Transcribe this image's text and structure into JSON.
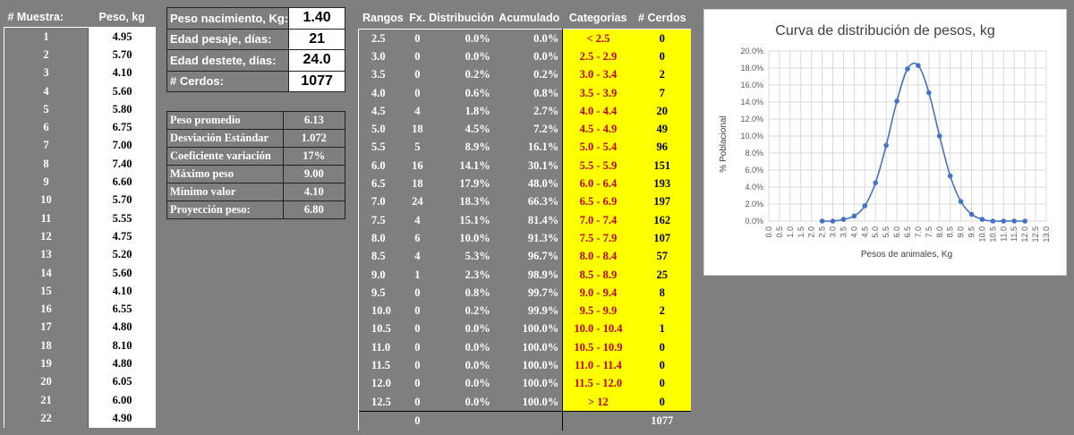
{
  "muestras": {
    "header_num": "# Muestra:",
    "header_peso": "Peso, kg",
    "rows": [
      {
        "n": "1",
        "p": "4.95"
      },
      {
        "n": "2",
        "p": "5.70"
      },
      {
        "n": "3",
        "p": "4.10"
      },
      {
        "n": "4",
        "p": "5.60"
      },
      {
        "n": "5",
        "p": "5.80"
      },
      {
        "n": "6",
        "p": "6.75"
      },
      {
        "n": "7",
        "p": "7.00"
      },
      {
        "n": "8",
        "p": "7.40"
      },
      {
        "n": "9",
        "p": "6.60"
      },
      {
        "n": "10",
        "p": "5.70"
      },
      {
        "n": "11",
        "p": "5.55"
      },
      {
        "n": "12",
        "p": "4.75"
      },
      {
        "n": "13",
        "p": "5.20"
      },
      {
        "n": "14",
        "p": "5.60"
      },
      {
        "n": "15",
        "p": "4.10"
      },
      {
        "n": "16",
        "p": "6.55"
      },
      {
        "n": "17",
        "p": "4.80"
      },
      {
        "n": "18",
        "p": "8.10"
      },
      {
        "n": "19",
        "p": "4.80"
      },
      {
        "n": "20",
        "p": "6.05"
      },
      {
        "n": "21",
        "p": "6.00"
      },
      {
        "n": "22",
        "p": "4.90"
      }
    ]
  },
  "params": [
    {
      "label": "Peso nacimiento, Kg:",
      "value": "1.40"
    },
    {
      "label": "Edad pesaje, días:",
      "value": "21"
    },
    {
      "label": "Edad destete, días:",
      "value": "24.0"
    },
    {
      "label": "# Cerdos:",
      "value": "1077"
    }
  ],
  "stats": [
    {
      "label": "Peso promedio",
      "value": "6.13"
    },
    {
      "label": "Desviación Estándar",
      "value": "1.072"
    },
    {
      "label": "Coeficiente variación",
      "value": "17%"
    },
    {
      "label": "Máximo peso",
      "value": "9.00"
    },
    {
      "label": "Mínimo valor",
      "value": "4.10"
    },
    {
      "label": "Proyección peso:",
      "value": "6.80"
    }
  ],
  "dist": {
    "headers": [
      "Rangos",
      "Fx.",
      "Distribución",
      "Acumulado",
      "Categorias",
      "# Cerdos"
    ],
    "rows": [
      {
        "r": "2.5",
        "fx": "0",
        "d": "0.0%",
        "a": "0.0%",
        "c": "< 2.5",
        "n": "0"
      },
      {
        "r": "3.0",
        "fx": "0",
        "d": "0.0%",
        "a": "0.0%",
        "c": "2.5 - 2.9",
        "n": "0"
      },
      {
        "r": "3.5",
        "fx": "0",
        "d": "0.2%",
        "a": "0.2%",
        "c": "3.0 - 3.4",
        "n": "2"
      },
      {
        "r": "4.0",
        "fx": "0",
        "d": "0.6%",
        "a": "0.8%",
        "c": "3.5 - 3.9",
        "n": "7"
      },
      {
        "r": "4.5",
        "fx": "4",
        "d": "1.8%",
        "a": "2.7%",
        "c": "4.0 - 4.4",
        "n": "20"
      },
      {
        "r": "5.0",
        "fx": "18",
        "d": "4.5%",
        "a": "7.2%",
        "c": "4.5 - 4.9",
        "n": "49"
      },
      {
        "r": "5.5",
        "fx": "5",
        "d": "8.9%",
        "a": "16.1%",
        "c": "5.0 - 5.4",
        "n": "96"
      },
      {
        "r": "6.0",
        "fx": "16",
        "d": "14.1%",
        "a": "30.1%",
        "c": "5.5 - 5.9",
        "n": "151"
      },
      {
        "r": "6.5",
        "fx": "18",
        "d": "17.9%",
        "a": "48.0%",
        "c": "6.0 - 6.4",
        "n": "193"
      },
      {
        "r": "7.0",
        "fx": "24",
        "d": "18.3%",
        "a": "66.3%",
        "c": "6.5 - 6.9",
        "n": "197"
      },
      {
        "r": "7.5",
        "fx": "4",
        "d": "15.1%",
        "a": "81.4%",
        "c": "7.0 - 7.4",
        "n": "162"
      },
      {
        "r": "8.0",
        "fx": "6",
        "d": "10.0%",
        "a": "91.3%",
        "c": "7.5 - 7.9",
        "n": "107"
      },
      {
        "r": "8.5",
        "fx": "4",
        "d": "5.3%",
        "a": "96.7%",
        "c": "8.0 - 8.4",
        "n": "57"
      },
      {
        "r": "9.0",
        "fx": "1",
        "d": "2.3%",
        "a": "98.9%",
        "c": "8.5 - 8.9",
        "n": "25"
      },
      {
        "r": "9.5",
        "fx": "0",
        "d": "0.8%",
        "a": "99.7%",
        "c": "9.0 - 9.4",
        "n": "8"
      },
      {
        "r": "10.0",
        "fx": "0",
        "d": "0.2%",
        "a": "99.9%",
        "c": "9.5 - 9.9",
        "n": "2"
      },
      {
        "r": "10.5",
        "fx": "0",
        "d": "0.0%",
        "a": "100.0%",
        "c": "10.0 - 10.4",
        "n": "1"
      },
      {
        "r": "11.0",
        "fx": "0",
        "d": "0.0%",
        "a": "100.0%",
        "c": "10.5 - 10.9",
        "n": "0"
      },
      {
        "r": "11.5",
        "fx": "0",
        "d": "0.0%",
        "a": "100.0%",
        "c": "11.0 - 11.4",
        "n": "0"
      },
      {
        "r": "12.0",
        "fx": "0",
        "d": "0.0%",
        "a": "100.0%",
        "c": "11.5 - 12.0",
        "n": "0"
      },
      {
        "r": "12.5",
        "fx": "0",
        "d": "0.0%",
        "a": "100.0%",
        "c": "> 12",
        "n": "0"
      }
    ],
    "total_fx": "0",
    "total_cerdos": "1077"
  },
  "chart_data": {
    "type": "line",
    "title": "Curva de distribución de pesos, kg",
    "xlabel": "Pesos de animales, Kg",
    "ylabel": "% Poblacional",
    "xlim": [
      0,
      13
    ],
    "ylim": [
      0,
      0.2
    ],
    "x_ticks": [
      "0.0",
      "0.5",
      "1.0",
      "1.5",
      "2.0",
      "2.5",
      "3.0",
      "3.5",
      "4.0",
      "4.5",
      "5.0",
      "5.5",
      "6.0",
      "6.5",
      "7.0",
      "7.5",
      "8.0",
      "8.5",
      "9.0",
      "9.5",
      "10.0",
      "10.5",
      "11.0",
      "11.5",
      "12.0",
      "12.5",
      "13.0"
    ],
    "y_ticks": [
      "0.0%",
      "2.0%",
      "4.0%",
      "6.0%",
      "8.0%",
      "10.0%",
      "12.0%",
      "14.0%",
      "16.0%",
      "18.0%",
      "20.0%"
    ],
    "x": [
      2.5,
      3.0,
      3.5,
      4.0,
      4.5,
      5.0,
      5.5,
      6.0,
      6.5,
      7.0,
      7.5,
      8.0,
      8.5,
      9.0,
      9.5,
      10.0,
      10.5,
      11.0,
      11.5,
      12.0
    ],
    "y": [
      0.0,
      0.0,
      0.002,
      0.006,
      0.018,
      0.045,
      0.089,
      0.141,
      0.179,
      0.183,
      0.151,
      0.1,
      0.053,
      0.023,
      0.008,
      0.002,
      0.0,
      0.0,
      0.0,
      0.0
    ],
    "grid": true,
    "colors": {
      "series": "#4472c4",
      "grid": "#d9d9d9"
    }
  }
}
